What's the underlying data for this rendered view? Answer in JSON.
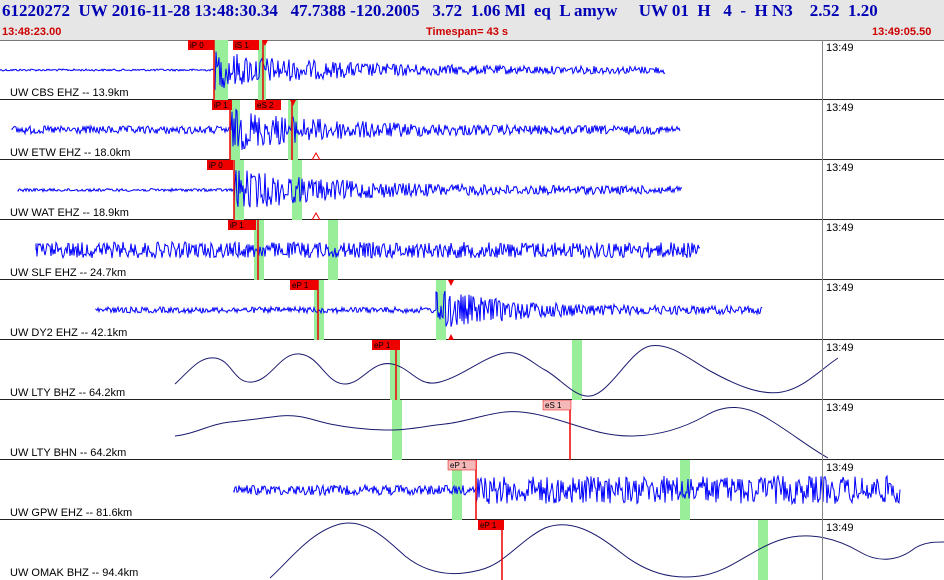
{
  "header": {
    "event_line": "61220272  UW 2016-11-28 13:48:30.34   47.7388 -120.2005   3.72  1.06 Ml  eq  L amyw     UW 01  H   4  -  H N3    2.52  1.20",
    "start_time": "13:48:23.00",
    "timespan": "Timespan=  43 s",
    "end_time": "13:49:05.50"
  },
  "colors": {
    "trace_blue": "#0000ff",
    "trace_dark": "#1a1a6e",
    "pick_red": "#ee0000",
    "pick_pink": "#f4b8b8",
    "window_green": "#99ee99"
  },
  "panels": [
    {
      "label": "UW CBS EHZ -- 13.9km",
      "time": "13:49",
      "picks": [
        {
          "text": "iP 0"
        },
        {
          "text": "iS 1"
        }
      ]
    },
    {
      "label": "UW ETW EHZ -- 18.0km",
      "time": "13:49",
      "picks": [
        {
          "text": "iP 1"
        },
        {
          "text": "eS 2"
        }
      ]
    },
    {
      "label": "UW WAT EHZ -- 18.9km",
      "time": "13:49",
      "picks": [
        {
          "text": "iP 0"
        }
      ]
    },
    {
      "label": "UW SLF EHZ -- 24.7km",
      "time": "13:49",
      "picks": [
        {
          "text": "iP 1"
        }
      ]
    },
    {
      "label": "UW DY2 EHZ -- 42.1km",
      "time": "13:49",
      "picks": [
        {
          "text": "eP 1"
        }
      ]
    },
    {
      "label": "UW LTY BHZ -- 64.2km",
      "time": "13:49",
      "picks": [
        {
          "text": "eP 1"
        }
      ]
    },
    {
      "label": "UW LTY BHN -- 64.2km",
      "time": "13:49",
      "picks": [
        {
          "text": "eS 1"
        }
      ]
    },
    {
      "label": "UW GPW EHZ -- 81.6km",
      "time": "13:49",
      "picks": [
        {
          "text": "eP 1"
        }
      ]
    },
    {
      "label": "UW OMAK BHZ -- 94.4km",
      "time": "13:49",
      "picks": [
        {
          "text": "eP 1"
        }
      ]
    }
  ]
}
